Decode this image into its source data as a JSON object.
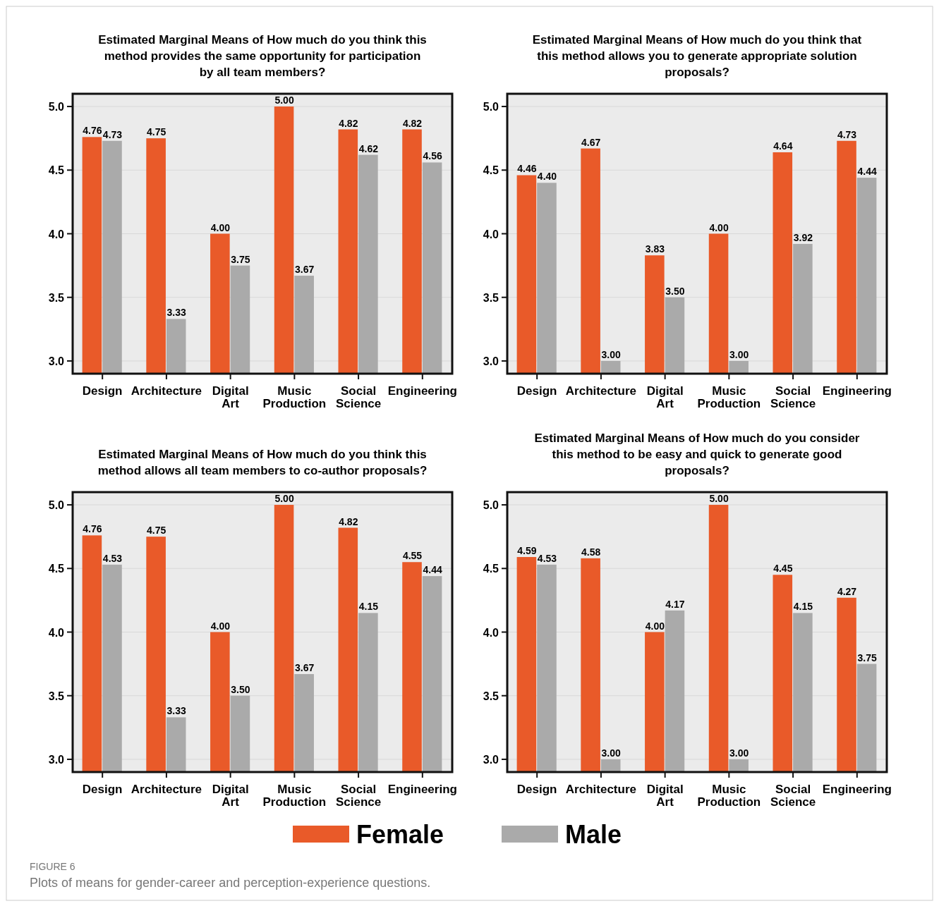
{
  "chart_data": [
    {
      "type": "bar",
      "title": "Estimated Marginal Means of How much do you think this method provides the same opportunity for participation by all team members?",
      "categories": [
        "Design",
        "Architecture",
        "Digital Art",
        "Music Production",
        "Social Science",
        "Engineering"
      ],
      "ylim": [
        2.9,
        5.1
      ],
      "yticks": [
        {
          "value": 3,
          "label": "3.0"
        },
        {
          "value": 3.5,
          "label": "3.5"
        },
        {
          "value": 4,
          "label": "4.0"
        },
        {
          "value": 4.5,
          "label": "4.5"
        },
        {
          "value": 5,
          "label": "5.0"
        }
      ],
      "grid": "y",
      "series": [
        {
          "color": "#e95a29",
          "values": [
            4.76,
            4.75,
            4.0,
            5.0,
            4.82,
            4.82
          ],
          "value_labels": [
            "4.76",
            "4.75",
            "4.00",
            "5.00",
            "4.82",
            "4.82"
          ]
        },
        {
          "color": "#aaaaaa",
          "values": [
            4.73,
            3.33,
            3.75,
            3.67,
            4.62,
            4.56
          ],
          "value_labels": [
            "4.73",
            "3.33",
            "3.75",
            "3.67",
            "4.62",
            "4.56"
          ]
        }
      ]
    },
    {
      "type": "bar",
      "title": "Estimated Marginal Means of How much do you think that this method allows you to generate appropriate solution proposals?",
      "categories": [
        "Design",
        "Architecture",
        "Digital Art",
        "Music Production",
        "Social Science",
        "Engineering"
      ],
      "ylim": [
        2.9,
        5.1
      ],
      "yticks": [
        {
          "value": 3,
          "label": "3.0"
        },
        {
          "value": 3.5,
          "label": "3.5"
        },
        {
          "value": 4,
          "label": "4.0"
        },
        {
          "value": 4.5,
          "label": "4.5"
        },
        {
          "value": 5,
          "label": "5.0"
        }
      ],
      "grid": "y",
      "series": [
        {
          "color": "#e95a29",
          "values": [
            4.46,
            4.67,
            3.83,
            4.0,
            4.64,
            4.73
          ],
          "value_labels": [
            "4.46",
            "4.67",
            "3.83",
            "4.00",
            "4.64",
            "4.73"
          ]
        },
        {
          "color": "#aaaaaa",
          "values": [
            4.4,
            3.0,
            3.5,
            3.0,
            3.92,
            4.44
          ],
          "value_labels": [
            "4.40",
            "3.00",
            "3.50",
            "3.00",
            "3.92",
            "4.44"
          ]
        }
      ]
    },
    {
      "type": "bar",
      "title": "Estimated Marginal Means of How much do you think this method allows all team members to co-author proposals?",
      "categories": [
        "Design",
        "Architecture",
        "Digital Art",
        "Music Production",
        "Social Science",
        "Engineering"
      ],
      "ylim": [
        2.9,
        5.1
      ],
      "yticks": [
        {
          "value": 3,
          "label": "3.0"
        },
        {
          "value": 3.5,
          "label": "3.5"
        },
        {
          "value": 4,
          "label": "4.0"
        },
        {
          "value": 4.5,
          "label": "4.5"
        },
        {
          "value": 5,
          "label": "5.0"
        }
      ],
      "grid": "y",
      "series": [
        {
          "color": "#e95a29",
          "values": [
            4.76,
            4.75,
            4.0,
            5.0,
            4.82,
            4.55
          ],
          "value_labels": [
            "4.76",
            "4.75",
            "4.00",
            "5.00",
            "4.82",
            "4.55"
          ]
        },
        {
          "color": "#aaaaaa",
          "values": [
            4.53,
            3.33,
            3.5,
            3.67,
            4.15,
            4.44
          ],
          "value_labels": [
            "4.53",
            "3.33",
            "3.50",
            "3.67",
            "4.15",
            "4.44"
          ]
        }
      ]
    },
    {
      "type": "bar",
      "title": "Estimated Marginal Means of How much do you consider this method to be easy and quick to generate good proposals?",
      "categories": [
        "Design",
        "Architecture",
        "Digital Art",
        "Music Production",
        "Social Science",
        "Engineering"
      ],
      "ylim": [
        2.9,
        5.1
      ],
      "yticks": [
        {
          "value": 3,
          "label": "3.0"
        },
        {
          "value": 3.5,
          "label": "3.5"
        },
        {
          "value": 4,
          "label": "4.0"
        },
        {
          "value": 4.5,
          "label": "4.5"
        },
        {
          "value": 5,
          "label": "5.0"
        }
      ],
      "grid": "y",
      "legend": "bottom",
      "annotations": [
        "FIGURE 6",
        "Plots of means for gender-career and perception-experience questions."
      ],
      "series": [
        {
          "name": "Female",
          "color": "#e95a29",
          "values": [
            4.59,
            4.58,
            4.0,
            5.0,
            4.45,
            4.27
          ],
          "value_labels": [
            "4.59",
            "4.58",
            "4.00",
            "5.00",
            "4.45",
            "4.27"
          ]
        },
        {
          "name": "Male",
          "color": "#aaaaaa",
          "values": [
            4.53,
            3.0,
            4.17,
            3.0,
            4.15,
            3.75
          ],
          "value_labels": [
            "4.53",
            "3.00",
            "4.17",
            "3.00",
            "4.15",
            "3.75"
          ]
        }
      ]
    }
  ]
}
